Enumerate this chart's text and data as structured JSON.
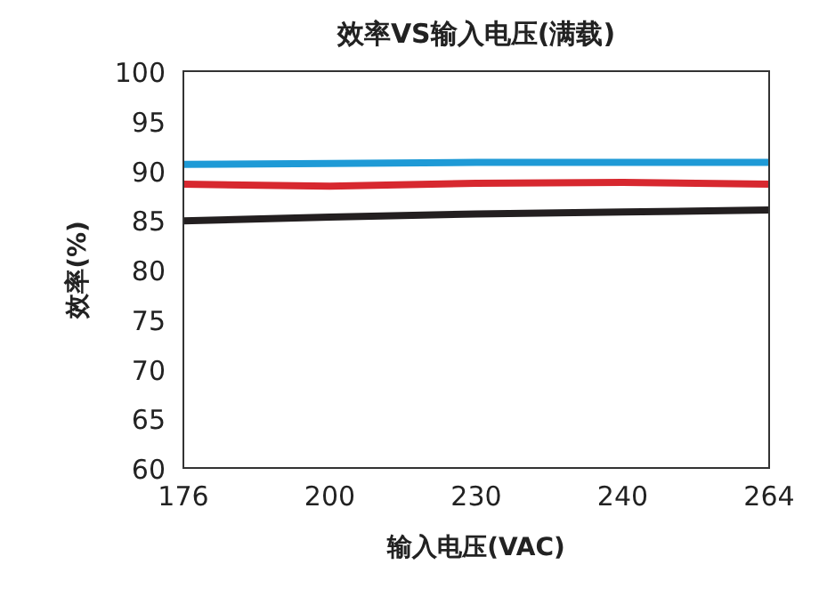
{
  "chart_data": {
    "type": "line",
    "title": "效率VS输入电压(满载)",
    "xlabel": "输入电压(VAC)",
    "ylabel": "效率(%)",
    "categories": [
      "176",
      "200",
      "230",
      "240",
      "264"
    ],
    "ylim": [
      60,
      100
    ],
    "yticks": [
      60,
      65,
      70,
      75,
      80,
      85,
      90,
      95,
      100
    ],
    "marker": "none",
    "line_style": "solid",
    "series": [
      {
        "color": "#1e9ad6",
        "values": [
          90.6,
          90.7,
          90.8,
          90.8,
          90.8
        ]
      },
      {
        "color": "#d7282f",
        "values": [
          88.6,
          88.4,
          88.7,
          88.8,
          88.6
        ]
      },
      {
        "color": "#231f20",
        "values": [
          84.9,
          85.3,
          85.6,
          85.8,
          86.0
        ]
      }
    ]
  }
}
